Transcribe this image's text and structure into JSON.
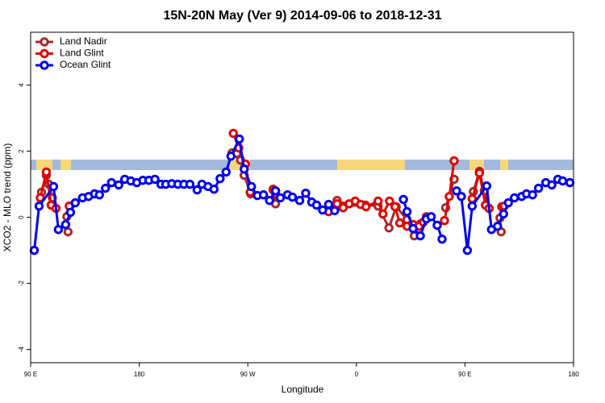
{
  "chart_data": {
    "type": "line",
    "title": "15N-20N May (Ver 9)   2014-09-06 to 2018-12-31",
    "x_label": "Longitude",
    "y_label": "XCO2 - MLO trend (ppm)",
    "xlim": [
      90,
      540
    ],
    "ylim": [
      -4.4,
      5.6
    ],
    "xticks": [
      {
        "value": 90,
        "label": "90 E"
      },
      {
        "value": 180,
        "label": "180"
      },
      {
        "value": 270,
        "label": "90 W"
      },
      {
        "value": 360,
        "label": "0"
      },
      {
        "value": 450,
        "label": "90 E"
      },
      {
        "value": 540,
        "label": "180"
      }
    ],
    "yticks": [
      -4,
      -2,
      0,
      2,
      4
    ],
    "legend": "top-left",
    "series": [
      {
        "name": "Land Nadir",
        "color": "#a52a2a",
        "x": [
          99,
          103,
          105,
          108,
          114,
          120,
          121,
          200,
          257,
          261,
          264,
          267,
          272.5,
          282,
          291,
          293,
          320,
          344,
          349,
          367.5,
          378,
          387,
          393,
          402,
          408,
          413,
          418,
          426,
          434,
          441,
          450,
          457,
          462,
          466,
          470,
          475,
          479,
          480
        ],
        "values": [
          0.76,
          1.27,
          1.0,
          0.59,
          null,
          0.02,
          -0.44,
          null,
          1.95,
          1.93,
          1.73,
          1.27,
          0.71,
          null,
          0.85,
          0.41,
          null,
          0.51,
          0.34,
          0.37,
          0.34,
          -0.32,
          0.32,
          -0.07,
          -0.56,
          -0.2,
          0.02,
          null,
          0.29,
          1.15,
          null,
          0.78,
          1.39,
          0.8,
          0.27,
          null,
          -0.02,
          -0.44
        ]
      },
      {
        "name": "Land Glint",
        "color": "#e00000",
        "x": [
          98,
          103,
          107,
          111,
          116,
          122,
          200,
          258,
          262.5,
          268,
          272,
          282,
          291,
          293,
          320,
          337,
          344,
          349,
          354,
          359,
          363.5,
          368,
          378,
          382,
          387.5,
          392,
          396,
          402,
          407,
          412,
          415.5,
          425,
          433,
          437,
          441,
          450,
          456,
          462,
          467,
          470,
          475,
          480.5,
          482.5
        ],
        "values": [
          0.59,
          1.37,
          0.37,
          0.27,
          null,
          0.34,
          null,
          2.54,
          2.1,
          1.61,
          0.76,
          null,
          0.83,
          0.71,
          null,
          0.17,
          0.41,
          0.29,
          0.41,
          0.49,
          0.39,
          0.32,
          0.49,
          0.1,
          0.49,
          0.32,
          -0.17,
          -0.27,
          -0.22,
          -0.27,
          -0.15,
          null,
          -0.1,
          0.63,
          1.71,
          null,
          0.56,
          1.34,
          0.37,
          0.27,
          null,
          0.32,
          0.34
        ]
      },
      {
        "name": "Ocean Glint",
        "color": "#0000ee",
        "x": [
          93,
          97,
          109,
          113,
          119,
          123,
          127,
          133,
          138,
          143,
          147,
          152,
          157,
          163,
          168,
          173,
          178,
          183,
          188,
          193,
          198,
          202,
          207,
          212,
          217,
          222,
          228,
          232,
          237,
          242,
          247,
          252,
          256,
          263,
          267,
          273,
          278,
          283,
          288,
          293,
          297,
          303,
          307,
          313,
          318,
          323,
          327,
          332,
          337,
          342,
          370,
          399,
          402,
          407,
          413,
          418,
          422,
          427,
          431,
          437,
          443,
          447,
          452,
          456,
          468,
          472,
          477,
          482,
          486,
          491,
          497,
          501,
          506,
          511,
          517,
          522,
          527,
          531,
          537
        ],
        "values": [
          -1.0,
          0.34,
          0.93,
          -0.37,
          -0.22,
          0.15,
          0.44,
          0.59,
          0.63,
          0.71,
          0.68,
          0.88,
          1.05,
          0.98,
          1.15,
          1.1,
          1.05,
          1.12,
          1.12,
          1.15,
          1.0,
          1.0,
          1.02,
          1.0,
          1.0,
          1.0,
          0.83,
          1.0,
          0.93,
          0.85,
          1.17,
          1.37,
          1.85,
          2.37,
          1.46,
          0.93,
          0.66,
          0.68,
          0.51,
          0.8,
          0.59,
          0.68,
          0.61,
          0.51,
          0.73,
          0.46,
          0.37,
          0.22,
          0.39,
          0.2,
          null,
          0.54,
          0.17,
          -0.34,
          -0.56,
          -0.05,
          0.02,
          -0.24,
          -0.66,
          null,
          0.8,
          0.63,
          -1.0,
          0.34,
          0.95,
          -0.37,
          -0.27,
          0.1,
          0.44,
          0.59,
          0.63,
          0.71,
          0.68,
          0.88,
          1.05,
          0.98,
          1.15,
          1.1,
          1.05
        ]
      }
    ]
  }
}
